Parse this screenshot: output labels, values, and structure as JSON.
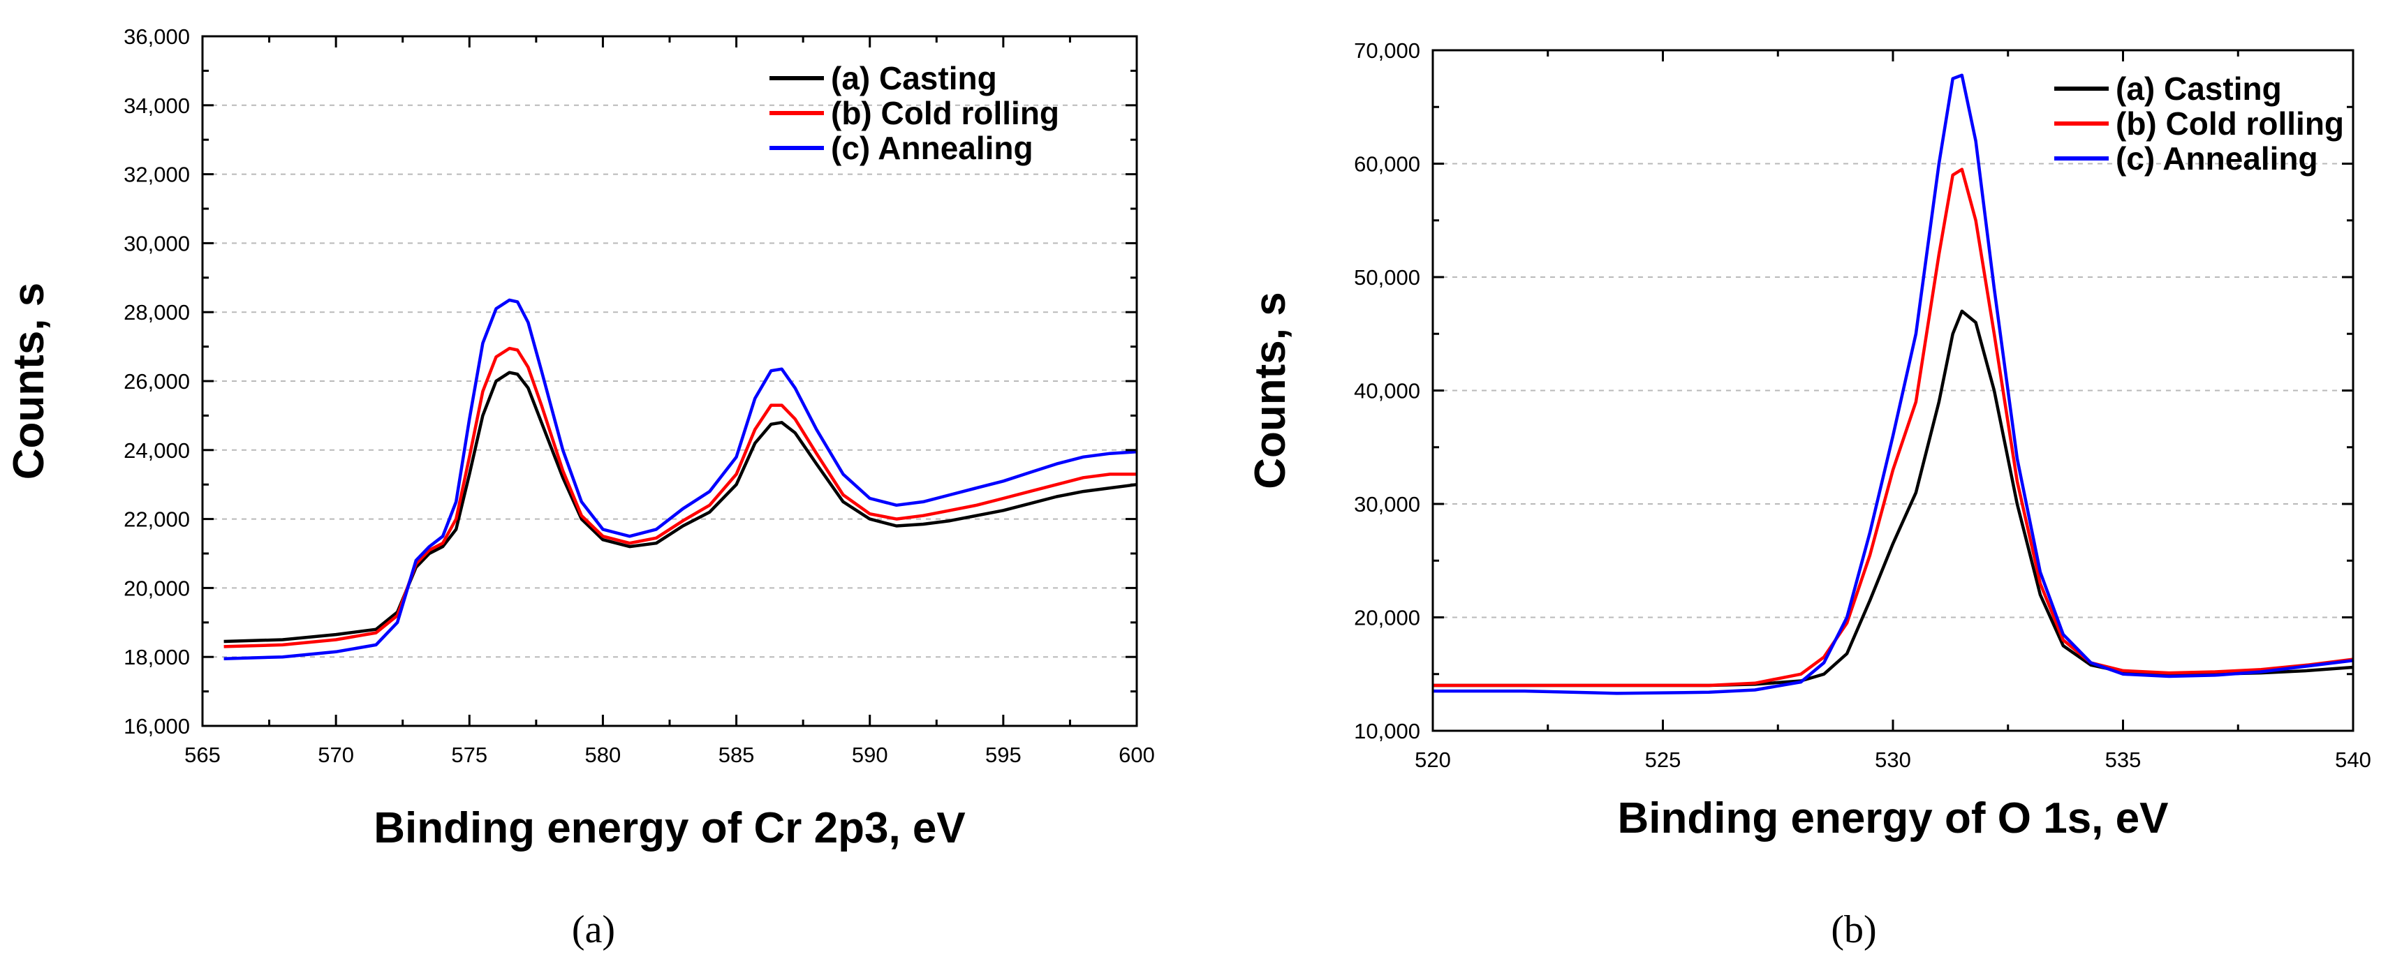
{
  "chart_data": [
    {
      "type": "line",
      "panel_label": "(a)",
      "xlabel": "Binding energy of Cr 2p3, eV",
      "ylabel": "Counts, s",
      "xlim": [
        565,
        600
      ],
      "ylim": [
        16000,
        36000
      ],
      "xticks": [
        565,
        570,
        575,
        580,
        585,
        590,
        595,
        600
      ],
      "xtick_labels": [
        "565",
        "570",
        "575",
        "580",
        "585",
        "590",
        "595",
        "600"
      ],
      "yticks": [
        16000,
        18000,
        20000,
        22000,
        24000,
        26000,
        28000,
        30000,
        32000,
        34000,
        36000
      ],
      "ytick_labels": [
        "16,000",
        "18,000",
        "20,000",
        "22,000",
        "24,000",
        "26,000",
        "28,000",
        "30,000",
        "32,000",
        "34,000",
        "36,000"
      ],
      "grid": "horizontal dashed",
      "legend": "top-right",
      "series": [
        {
          "name": "(a) Casting",
          "color": "#000000",
          "x": [
            565.8,
            568,
            570,
            571.5,
            572.3,
            573,
            573.5,
            574,
            574.5,
            575,
            575.5,
            576,
            576.5,
            576.8,
            577.2,
            577.7,
            578.5,
            579.2,
            580,
            581,
            582,
            583,
            584,
            585,
            585.7,
            586.3,
            586.7,
            587.2,
            588,
            589,
            590,
            591,
            592,
            593,
            594,
            595,
            596,
            597,
            598,
            599,
            600
          ],
          "y": [
            18450,
            18500,
            18650,
            18800,
            19300,
            20600,
            21000,
            21200,
            21700,
            23300,
            25000,
            26000,
            26250,
            26200,
            25800,
            24800,
            23200,
            22000,
            21400,
            21200,
            21300,
            21800,
            22200,
            23000,
            24200,
            24750,
            24800,
            24500,
            23600,
            22500,
            22000,
            21800,
            21850,
            21950,
            22100,
            22250,
            22450,
            22650,
            22800,
            22900,
            23000
          ]
        },
        {
          "name": "(b) Cold rolling",
          "color": "#ff0000",
          "x": [
            565.8,
            568,
            570,
            571.5,
            572.3,
            573,
            573.5,
            574,
            574.5,
            575,
            575.5,
            576,
            576.5,
            576.8,
            577.2,
            577.7,
            578.5,
            579.2,
            580,
            581,
            582,
            583,
            584,
            585,
            585.7,
            586.3,
            586.7,
            587.2,
            588,
            589,
            590,
            591,
            592,
            593,
            594,
            595,
            596,
            597,
            598,
            599,
            600
          ],
          "y": [
            18300,
            18350,
            18500,
            18700,
            19200,
            20700,
            21100,
            21300,
            22000,
            23800,
            25700,
            26700,
            26950,
            26900,
            26400,
            25300,
            23400,
            22100,
            21500,
            21300,
            21450,
            21950,
            22400,
            23300,
            24600,
            25300,
            25300,
            24900,
            23900,
            22700,
            22150,
            22000,
            22100,
            22250,
            22400,
            22600,
            22800,
            23000,
            23200,
            23300,
            23300
          ]
        },
        {
          "name": "(c) Annealing",
          "color": "#0000ff",
          "x": [
            565.8,
            568,
            570,
            571.5,
            572.3,
            573,
            573.5,
            574,
            574.5,
            575,
            575.5,
            576,
            576.5,
            576.8,
            577.2,
            577.7,
            578.5,
            579.2,
            580,
            581,
            582,
            583,
            584,
            585,
            585.7,
            586.3,
            586.7,
            587.2,
            588,
            589,
            590,
            591,
            592,
            593,
            594,
            595,
            596,
            597,
            598,
            599,
            600
          ],
          "y": [
            17950,
            18000,
            18150,
            18350,
            19000,
            20800,
            21200,
            21500,
            22500,
            24900,
            27100,
            28100,
            28350,
            28300,
            27700,
            26300,
            24000,
            22500,
            21700,
            21500,
            21700,
            22300,
            22800,
            23800,
            25500,
            26300,
            26350,
            25800,
            24600,
            23300,
            22600,
            22400,
            22500,
            22700,
            22900,
            23100,
            23350,
            23600,
            23800,
            23900,
            23950
          ]
        }
      ]
    },
    {
      "type": "line",
      "panel_label": "(b)",
      "xlabel": "Binding energy of O 1s, eV",
      "ylabel": "Counts, s",
      "xlim": [
        520,
        540
      ],
      "ylim": [
        10000,
        70000
      ],
      "xticks": [
        520,
        525,
        530,
        535,
        540
      ],
      "xtick_labels": [
        "520",
        "525",
        "530",
        "535",
        "540"
      ],
      "yticks": [
        10000,
        20000,
        30000,
        40000,
        50000,
        60000,
        70000
      ],
      "ytick_labels": [
        "10,000",
        "20,000",
        "30,000",
        "40,000",
        "50,000",
        "60,000",
        "70,000"
      ],
      "grid": "horizontal dashed",
      "legend": "top-right",
      "series": [
        {
          "name": "(a) Casting",
          "color": "#000000",
          "x": [
            520,
            522,
            524,
            526,
            527,
            528,
            528.5,
            529,
            529.5,
            530,
            530.5,
            531,
            531.3,
            531.5,
            531.8,
            532.2,
            532.7,
            533.2,
            533.7,
            534.3,
            535,
            536,
            537,
            538,
            539,
            540
          ],
          "y": [
            14000,
            14000,
            14000,
            14000,
            14100,
            14400,
            15000,
            16800,
            21500,
            26500,
            31000,
            39000,
            45000,
            47000,
            46000,
            40000,
            30000,
            22000,
            17500,
            15800,
            15200,
            15000,
            15000,
            15100,
            15300,
            15600
          ]
        },
        {
          "name": "(b) Cold rolling",
          "color": "#ff0000",
          "x": [
            520,
            522,
            524,
            526,
            527,
            528,
            528.5,
            529,
            529.5,
            530,
            530.5,
            531,
            531.3,
            531.5,
            531.8,
            532.2,
            532.7,
            533.2,
            533.7,
            534.3,
            535,
            536,
            537,
            538,
            539,
            540
          ],
          "y": [
            14000,
            14000,
            14000,
            14000,
            14200,
            15000,
            16500,
            19500,
            25500,
            33000,
            39000,
            52000,
            59000,
            59500,
            55000,
            45000,
            32000,
            23000,
            18000,
            16000,
            15300,
            15100,
            15200,
            15400,
            15800,
            16300
          ]
        },
        {
          "name": "(c) Annealing",
          "color": "#0000ff",
          "x": [
            520,
            522,
            524,
            526,
            527,
            528,
            528.5,
            529,
            529.5,
            530,
            530.5,
            531,
            531.3,
            531.5,
            531.8,
            532.2,
            532.7,
            533.2,
            533.7,
            534.3,
            535,
            536,
            537,
            538,
            539,
            540
          ],
          "y": [
            13500,
            13500,
            13300,
            13400,
            13600,
            14300,
            16000,
            20000,
            27500,
            36000,
            45000,
            60000,
            67500,
            67800,
            62000,
            49000,
            34000,
            24000,
            18500,
            16000,
            15000,
            14800,
            14900,
            15200,
            15700,
            16200
          ]
        }
      ]
    }
  ]
}
